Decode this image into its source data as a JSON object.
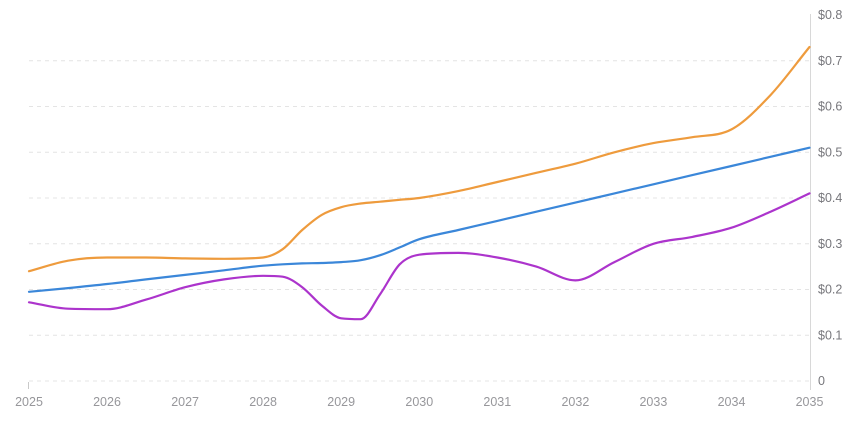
{
  "chart_data": {
    "type": "line",
    "title": "",
    "xlabel": "",
    "ylabel": "",
    "legend": "none",
    "grid": "horizontal-dashed",
    "xlim": [
      2025,
      2035
    ],
    "ylim": [
      0,
      0.8
    ],
    "x": [
      2025,
      2025.5,
      2026,
      2026.5,
      2027,
      2027.5,
      2028,
      2028.25,
      2028.5,
      2028.75,
      2029,
      2029.25,
      2029.5,
      2029.75,
      2030,
      2030.5,
      2031,
      2031.5,
      2032,
      2032.5,
      2033,
      2033.5,
      2034,
      2034.5,
      2035
    ],
    "series": [
      {
        "name": "blue",
        "color": "#3B87D9",
        "values": [
          0.195,
          0.203,
          0.212,
          0.222,
          0.232,
          0.242,
          0.252,
          0.255,
          0.257,
          0.258,
          0.26,
          0.264,
          0.275,
          0.292,
          0.31,
          0.33,
          0.35,
          0.37,
          0.39,
          0.41,
          0.43,
          0.45,
          0.47,
          0.49,
          0.51
        ]
      },
      {
        "name": "magenta",
        "color": "#AC34CC",
        "values": [
          0.172,
          0.158,
          0.157,
          0.178,
          0.205,
          0.222,
          0.23,
          0.228,
          0.205,
          0.165,
          0.137,
          0.135,
          0.19,
          0.255,
          0.276,
          0.28,
          0.27,
          0.25,
          0.22,
          0.26,
          0.3,
          0.315,
          0.335,
          0.37,
          0.41
        ]
      },
      {
        "name": "orange",
        "color": "#EE9B3D",
        "values": [
          0.24,
          0.263,
          0.27,
          0.27,
          0.268,
          0.267,
          0.27,
          0.288,
          0.33,
          0.363,
          0.38,
          0.388,
          0.392,
          0.396,
          0.4,
          0.415,
          0.435,
          0.455,
          0.475,
          0.5,
          0.52,
          0.533,
          0.55,
          0.625,
          0.73
        ]
      }
    ],
    "x_ticks": {
      "values": [
        2025,
        2026,
        2027,
        2028,
        2029,
        2030,
        2031,
        2032,
        2033,
        2034,
        2035
      ],
      "labels": [
        "2025",
        "2026",
        "2027",
        "2028",
        "2029",
        "2030",
        "2031",
        "2032",
        "2033",
        "2034",
        "2035"
      ]
    },
    "y_ticks": {
      "side": "right",
      "values": [
        0.8,
        0.7,
        0.6,
        0.5,
        0.4,
        0.3,
        0.2,
        0.1,
        0
      ],
      "labels": [
        "$0.8",
        "$0.7",
        "$0.6",
        "$0.5",
        "$0.4",
        "$0.3",
        "$0.2",
        "$0.1",
        "0"
      ]
    },
    "gridlines_at": [
      0,
      0.1,
      0.2,
      0.3,
      0.4,
      0.5,
      0.6,
      0.7
    ]
  },
  "colors": {
    "background": "#ffffff",
    "gridline": "#E4E4E4",
    "axis_line": "#D8D8D8",
    "tick_mark": "#C9C9C9",
    "x_label": "#97979B",
    "y_label": "#77777C"
  }
}
